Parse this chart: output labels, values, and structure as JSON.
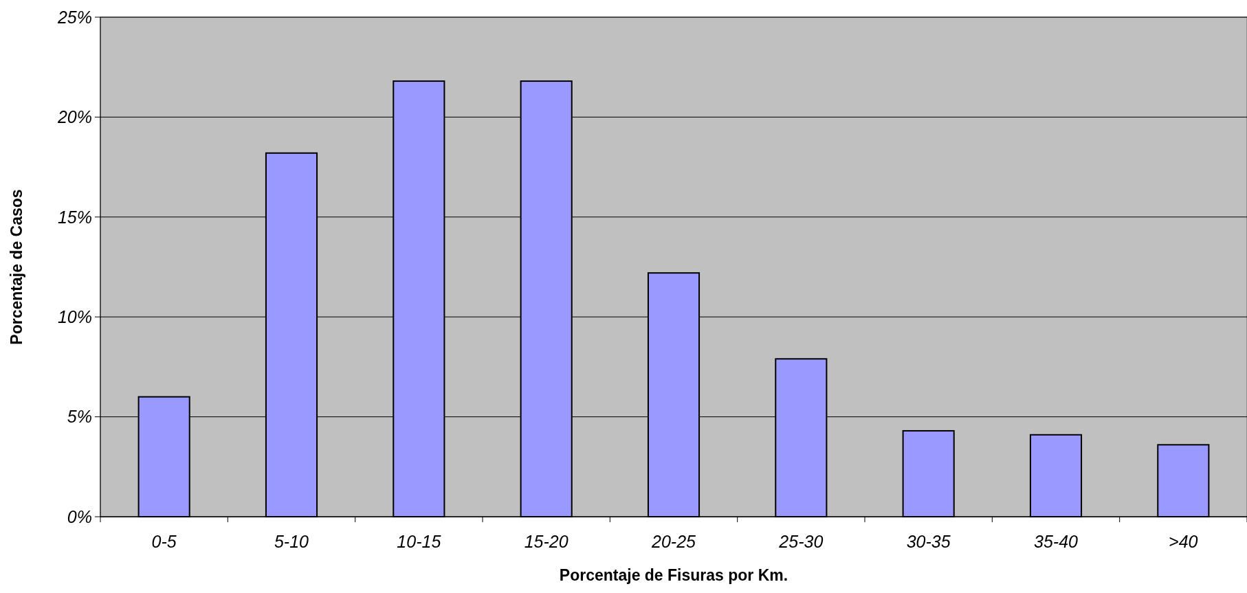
{
  "chart_data": {
    "type": "bar",
    "xlabel": "Porcentaje de Fisuras por Km.",
    "ylabel": "Porcentaje de Casos",
    "categories": [
      "0-5",
      "5-10",
      "10-15",
      "15-20",
      "20-25",
      "25-30",
      "30-35",
      "35-40",
      ">40"
    ],
    "values": [
      6.0,
      18.2,
      21.8,
      21.8,
      12.2,
      7.9,
      4.3,
      4.1,
      3.6
    ],
    "color": "#9999ff",
    "ylim": [
      0,
      25
    ],
    "yticks": [
      {
        "value": 0,
        "label": "0%"
      },
      {
        "value": 5,
        "label": "5%"
      },
      {
        "value": 10,
        "label": "10%"
      },
      {
        "value": 15,
        "label": "15%"
      },
      {
        "value": 20,
        "label": "20%"
      },
      {
        "value": 25,
        "label": "25%"
      }
    ],
    "grid": "y"
  }
}
